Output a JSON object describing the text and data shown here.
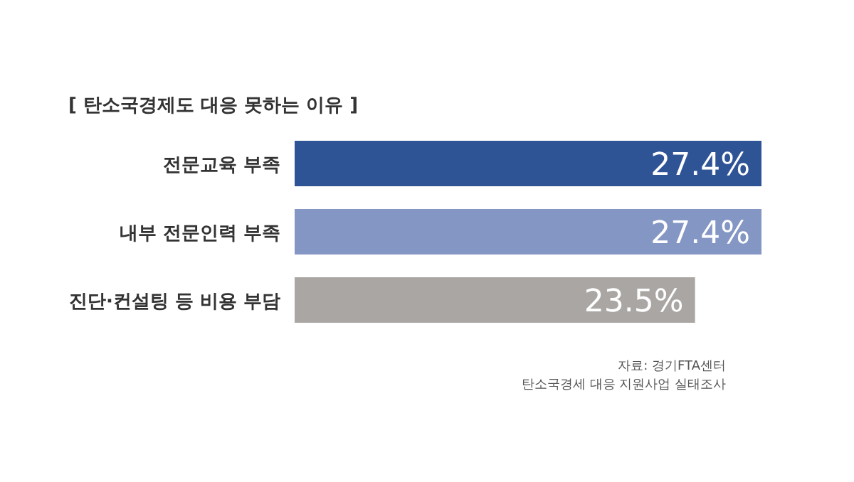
{
  "chart_data": {
    "type": "bar",
    "orientation": "horizontal",
    "title": "[ 탄소국경제도 대응 못하는 이유 ]",
    "categories": [
      "전문교육 부족",
      "내부 전문인력 부족",
      "진단·컨설팅 등 비용 부담"
    ],
    "values": [
      27.4,
      27.4,
      23.5
    ],
    "colors": [
      "#2f5496",
      "#8496c4",
      "#a9a6a4"
    ],
    "value_labels": [
      "27.4%",
      "27.4%",
      "23.5%"
    ],
    "annotations": [
      "자료: 경기FTA센터",
      "탄소국경세 대응 지원사업 실태조사"
    ]
  }
}
